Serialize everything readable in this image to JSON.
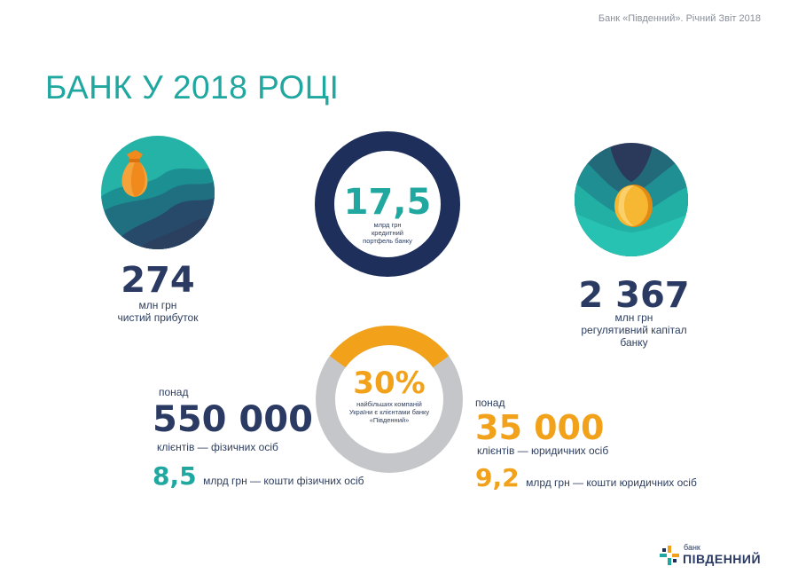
{
  "header": {
    "note": "Банк «Південний». Річний Звіт 2018"
  },
  "page_title": "БАНК У 2018 РОЦІ",
  "profit": {
    "value": "274",
    "unit": "млн грн",
    "label": "чистий прибуток"
  },
  "credit": {
    "value": "17,5",
    "line1": "млрд грн",
    "line2": "кредитний",
    "line3": "портфель банку"
  },
  "capital": {
    "value": "2 367",
    "unit": "млн грн",
    "line1": "регулятивний капітал",
    "line2": "банку"
  },
  "companies": {
    "value": "30%",
    "share": 0.3,
    "line1": "найбільших компаній",
    "line2": "України є клієнтами банку",
    "line3": "«Південний»"
  },
  "individuals": {
    "prefix": "понад",
    "value": "550 000",
    "label": "клієнтів — фізичних осіб",
    "funds_value": "8,5",
    "funds_label": "млрд грн — кошти фізичних осіб"
  },
  "legal": {
    "prefix": "понад",
    "value": "35 000",
    "label": "клієнтів — юридичних осіб",
    "funds_value": "9,2",
    "funds_label": "млрд грн — кошти юридичних осіб"
  },
  "logo": {
    "small": "банк",
    "big": "ПІВДЕННИЙ"
  },
  "colors": {
    "teal": "#1fa7a0",
    "navy": "#1e2f5c",
    "orange": "#f2a11a",
    "grey": "#c4c6c9"
  },
  "icons": {
    "profit": "money-bag-icon",
    "capital": "gold-coin-icon",
    "logo": "pivdennyi-logo-icon"
  }
}
